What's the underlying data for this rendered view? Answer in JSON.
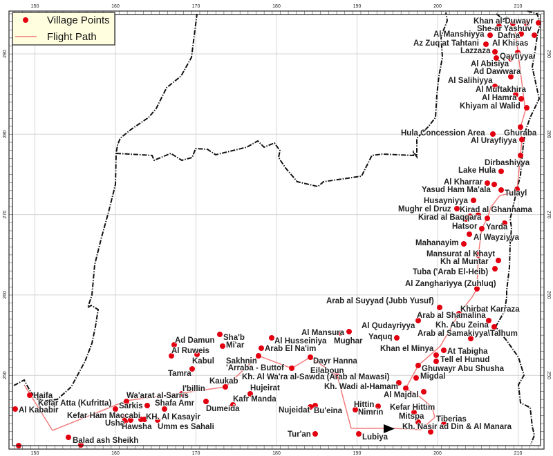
{
  "legend": {
    "village_points": "Village Points",
    "flight_path": "Flight Path",
    "village_color": "#e3000f",
    "path_color": "#f47c7c"
  },
  "axes": {
    "x_ticks": [
      "150",
      "160",
      "170",
      "180",
      "190",
      "200",
      "210"
    ],
    "y_ticks": [
      "290",
      "280",
      "270",
      "260",
      "250"
    ]
  },
  "villages": [
    "Khan al-Duwayr",
    "She-ar Yashuv",
    "Al Manshiyya",
    "Dafna",
    "Az Zuq at Tahtani",
    "Al Khisas",
    "Lazzaza",
    "Qaytiyya",
    "Al Abisiya",
    "Ad Dawwara",
    "Al Salihiyya",
    "Al Muftakhira",
    "Al Hamra",
    "Khiyam al Walid",
    "Hula Concession Area",
    "Ghuraba",
    "Al Urayfiyya",
    "Dirbashiyya",
    "Lake Hula",
    "Al Kharrar",
    "Yasud Ham Ma'ala",
    "Tulayl",
    "Husayniyya",
    "Mughr el Druz",
    "Kirad al Ghannama",
    "Kirad al Baqqara",
    "Hatsor",
    "Yarda",
    "Al Wayziyya",
    "Mahanayim",
    "Mansurat al Khayt",
    "Kh al Muntar",
    "Tuba ('Arab El-Heib)",
    "Al Zanghariyya (Zuhluq)",
    "Arab al Suyyad (Jubb Yusuf)",
    "Khirbat Karraza",
    "Arab al Shamalina",
    "Al Qudayriyya",
    "Kh. Abu Zeina",
    "Arab al Samakiyya\\Talhum",
    "Al Mansura",
    "Mughar",
    "Yaquq",
    "Khan el Minya",
    "At Tabigha",
    "Tell el Hunud",
    "Ghuwayr Abu Shusha",
    "Migdal",
    "Kh. Wadi al-Hamam",
    "Al Majdal",
    "Dayr Hanna",
    "Eilaboun",
    "Kh. Al Wa'ra al-Sawda (Arab al Mawasi)",
    "Hittin",
    "Nimrin",
    "Nujeidat",
    "Bu'eina",
    "Kefar Hittim",
    "Mitspa",
    "Tiberias",
    "Kh. Nasir ad Din & Al Manara",
    "Tur'an",
    "Lubiya",
    "Ad Damun",
    "Sha'b",
    "Mi'ar",
    "Al Husseiniya",
    "Al Ruweis",
    "Arab El Na'im",
    "Kabul",
    "Sakhnin",
    "'Arraba - Buttof",
    "Tamra",
    "Kaukab",
    "I'billin",
    "Hujeirat",
    "Kafr Manda",
    "Dumeida",
    "Haifa",
    "Kefar Atta (Kufritta)",
    "Al Kababir",
    "Wa'arat al-Sarris",
    "Sarkis",
    "Shafa Amr",
    "Kefar Ham Maccabi",
    "Usha",
    "KH. Al Kasayir",
    "Hawsha",
    "Umm es Sahali",
    "Balad ash Sheikh"
  ]
}
